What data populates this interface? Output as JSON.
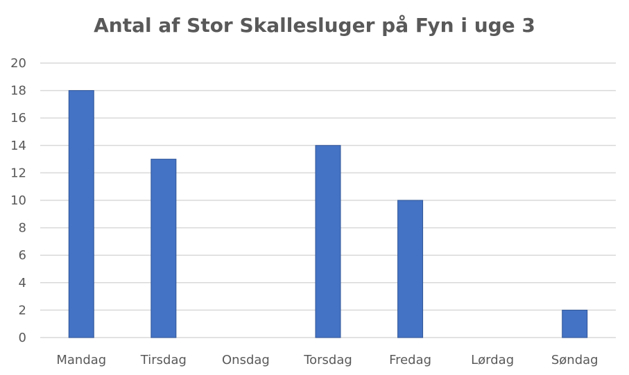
{
  "chart_data": {
    "type": "bar",
    "title": "Antal af Stor Skallesluger på Fyn i uge 3",
    "xlabel": "",
    "ylabel": "",
    "categories": [
      "Mandag",
      "Tirsdag",
      "Onsdag",
      "Torsdag",
      "Fredag",
      "Lørdag",
      "Søndag"
    ],
    "values": [
      18,
      13,
      0,
      14,
      10,
      0,
      2
    ],
    "ylim": [
      0,
      20
    ],
    "yticks": [
      "0",
      "2",
      "4",
      "6",
      "8",
      "10",
      "12",
      "14",
      "16",
      "18",
      "20"
    ],
    "grid": true,
    "legend": "none",
    "colors": {
      "bar": "#4472C4",
      "bar_edge": "#2F5597",
      "grid": "#D9D9D9",
      "text": "#595959"
    }
  }
}
